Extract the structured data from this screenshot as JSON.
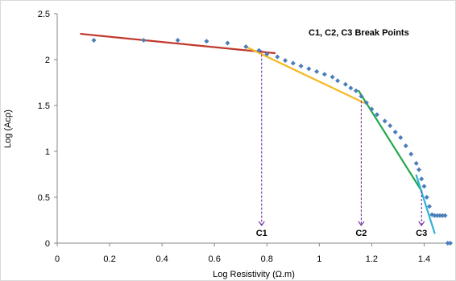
{
  "chart_data": {
    "type": "scatter",
    "title": "",
    "annotation": "C1, C2, C3 Break Points",
    "xlabel": "Log  Resistivity (Ω.m)",
    "ylabel": "Log (Acρ)",
    "xlim": [
      0,
      1.5
    ],
    "ylim": [
      0,
      2.5
    ],
    "x_ticks": [
      "0",
      "0.2",
      "0.4",
      "0.6",
      "0.8",
      "1",
      "1.2",
      "1.4"
    ],
    "y_ticks": [
      "0",
      "0.5",
      "1",
      "1.5",
      "2",
      "2.5"
    ],
    "grid": false,
    "series": [
      {
        "marker": "diamond",
        "color": "#4a7ebb",
        "points": [
          [
            0.14,
            2.21
          ],
          [
            0.33,
            2.21
          ],
          [
            0.46,
            2.21
          ],
          [
            0.57,
            2.2
          ],
          [
            0.65,
            2.18
          ],
          [
            0.72,
            2.14
          ],
          [
            0.77,
            2.1
          ],
          [
            0.8,
            2.06
          ],
          [
            0.84,
            2.03
          ],
          [
            0.87,
            1.99
          ],
          [
            0.9,
            1.96
          ],
          [
            0.93,
            1.93
          ],
          [
            0.96,
            1.9
          ],
          [
            0.99,
            1.87
          ],
          [
            1.02,
            1.84
          ],
          [
            1.05,
            1.81
          ],
          [
            1.07,
            1.77
          ],
          [
            1.1,
            1.73
          ],
          [
            1.12,
            1.69
          ],
          [
            1.14,
            1.66
          ],
          [
            1.16,
            1.6
          ],
          [
            1.18,
            1.53
          ],
          [
            1.2,
            1.46
          ],
          [
            1.22,
            1.4
          ],
          [
            1.25,
            1.33
          ],
          [
            1.27,
            1.28
          ],
          [
            1.29,
            1.21
          ],
          [
            1.31,
            1.15
          ],
          [
            1.33,
            1.06
          ],
          [
            1.35,
            0.97
          ],
          [
            1.37,
            0.87
          ],
          [
            1.38,
            0.8
          ],
          [
            1.39,
            0.7
          ],
          [
            1.4,
            0.62
          ],
          [
            1.41,
            0.5
          ],
          [
            1.42,
            0.4
          ],
          [
            1.43,
            0.31
          ],
          [
            1.44,
            0.3
          ],
          [
            1.45,
            0.3
          ],
          [
            1.46,
            0.3
          ],
          [
            1.47,
            0.3
          ],
          [
            1.48,
            0.3
          ],
          [
            1.49,
            0.0
          ],
          [
            1.5,
            0.0
          ]
        ]
      }
    ],
    "fit_lines": [
      {
        "color": "#c0392b",
        "points": [
          [
            0.09,
            2.28
          ],
          [
            0.83,
            2.07
          ]
        ]
      },
      {
        "color": "#f5b820",
        "points": [
          [
            0.72,
            2.14
          ],
          [
            1.17,
            1.53
          ]
        ]
      },
      {
        "color": "#22a84a",
        "points": [
          [
            1.15,
            1.66
          ],
          [
            1.39,
            0.57
          ]
        ]
      },
      {
        "color": "#2bb3d6",
        "points": [
          [
            1.37,
            0.74
          ],
          [
            1.44,
            0.11
          ]
        ]
      }
    ],
    "break_points": [
      {
        "label": "C1",
        "x": 0.78,
        "y": 2.1
      },
      {
        "label": "C2",
        "x": 1.16,
        "y": 1.55
      },
      {
        "label": "C3",
        "x": 1.39,
        "y": 0.57
      }
    ],
    "break_line_color": "#7030a0"
  }
}
